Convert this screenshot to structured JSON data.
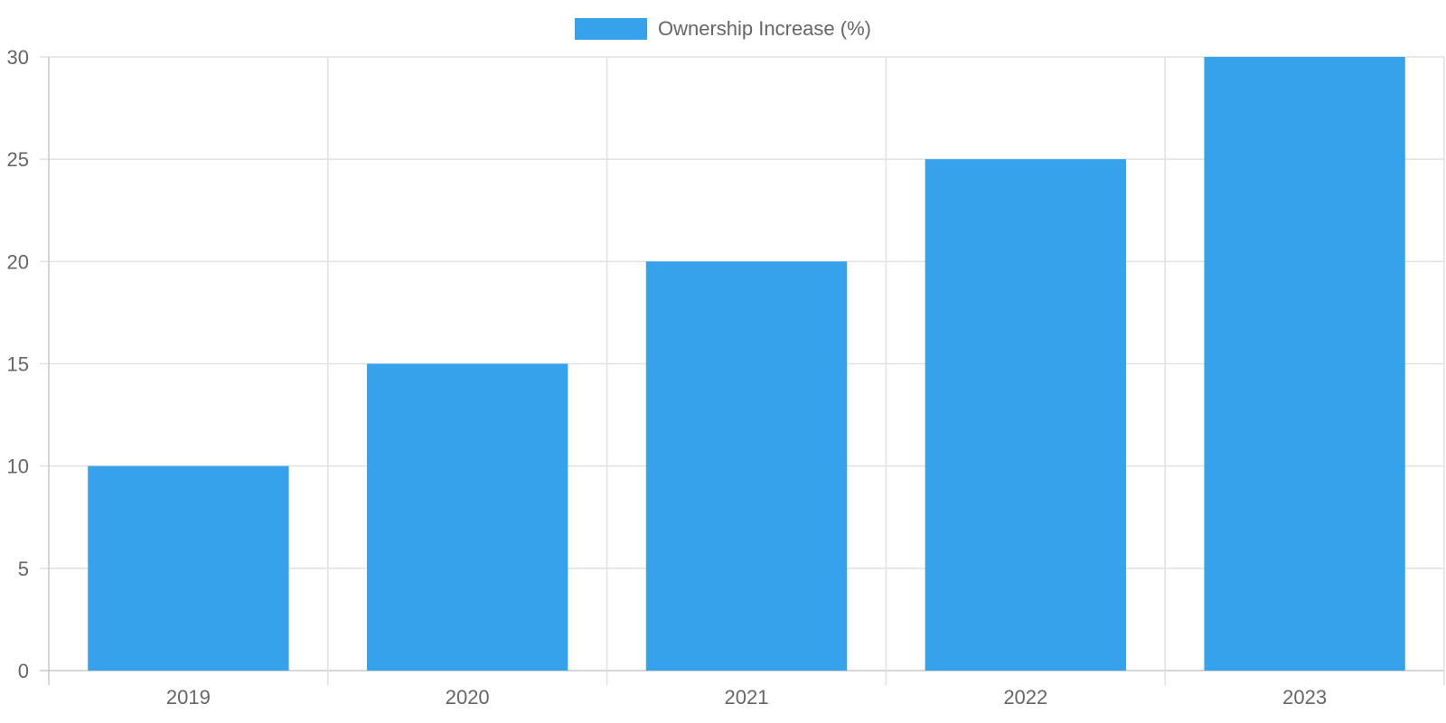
{
  "chart_data": {
    "type": "bar",
    "categories": [
      "2019",
      "2020",
      "2021",
      "2022",
      "2023"
    ],
    "series": [
      {
        "name": "Ownership Increase (%)",
        "values": [
          10,
          15,
          20,
          25,
          30
        ],
        "color": "#36a2eb"
      }
    ],
    "ylim": [
      0,
      30
    ],
    "y_ticks": [
      0,
      5,
      10,
      15,
      20,
      25,
      30
    ],
    "title": "",
    "xlabel": "",
    "ylabel": "",
    "grid": true,
    "legend_position": "top-center",
    "colors": {
      "grid": "#e1e1e1",
      "axis": "#c8c8c8",
      "text": "#666666"
    }
  }
}
